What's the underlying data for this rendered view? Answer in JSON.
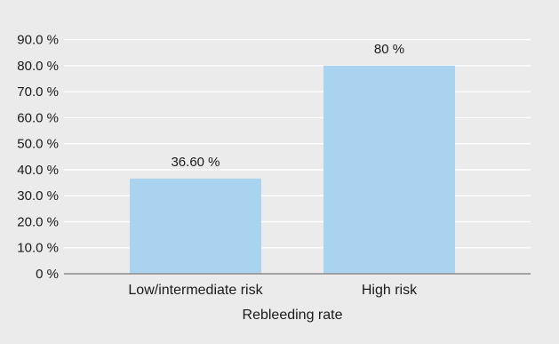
{
  "chart_data": {
    "type": "bar",
    "categories": [
      "Low/intermediate risk",
      "High risk"
    ],
    "values": [
      36.6,
      80
    ],
    "data_labels": [
      "36.60 %",
      "80 %"
    ],
    "y_ticks": [
      "0 %",
      "10.0 %",
      "20.0 %",
      "30.0 %",
      "40.0 %",
      "50.0 %",
      "60.0 %",
      "70.0 %",
      "80.0 %",
      "90.0 %"
    ],
    "ylim": [
      0,
      90
    ],
    "title": "",
    "xlabel": "Rebleeding rate",
    "ylabel": "",
    "grid": true,
    "legend": "none",
    "colors": {
      "bar": "#aad3ef",
      "background": "#ebebeb",
      "grid": "#ffffff",
      "axis": "#8c8c8c"
    }
  }
}
